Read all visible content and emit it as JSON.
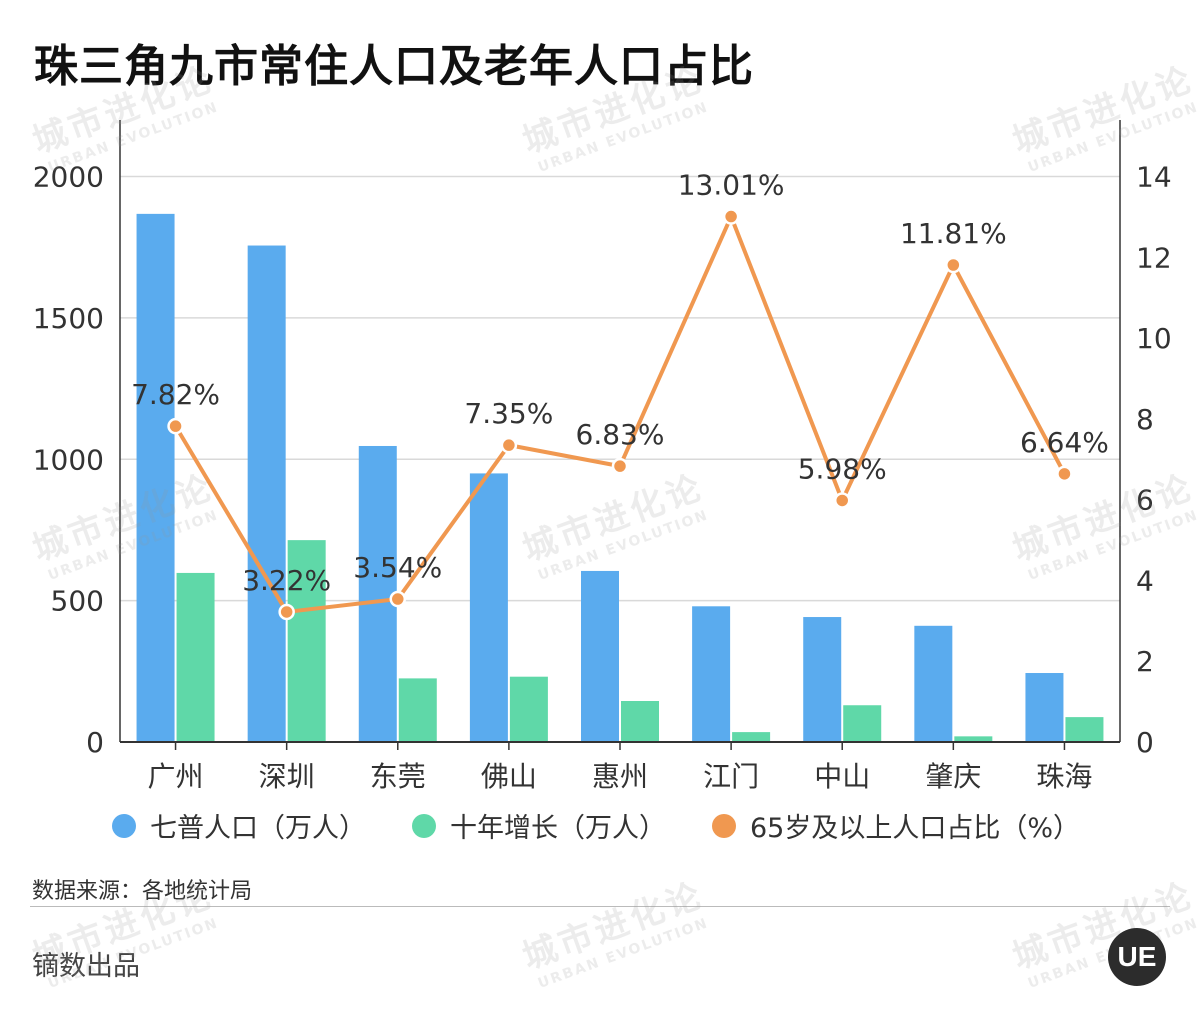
{
  "title": "珠三角九市常住人口及老年人口占比",
  "source": "数据来源：各地统计局",
  "credit": "镝数出品",
  "watermark": {
    "cn": "城市进化论",
    "en": "URBAN EVOLUTION",
    "logo": "UE"
  },
  "colors": {
    "population": "#5aabee",
    "growth": "#5fd8a8",
    "elderly": "#f09850"
  },
  "chart_data": {
    "type": "bar",
    "title": "珠三角九市常住人口及老年人口占比",
    "categories": [
      "广州",
      "深圳",
      "东莞",
      "佛山",
      "惠州",
      "江门",
      "中山",
      "肇庆",
      "珠海"
    ],
    "series": [
      {
        "name": "七普人口（万人）",
        "type": "bar",
        "axis": "left",
        "values": [
          1868,
          1756,
          1047,
          950,
          605,
          480,
          442,
          411,
          244
        ]
      },
      {
        "name": "十年增长（万人）",
        "type": "bar",
        "axis": "left",
        "values": [
          598,
          714,
          225,
          231,
          145,
          35,
          130,
          20,
          88
        ]
      },
      {
        "name": "65岁及以上人口占比（%）",
        "type": "line",
        "axis": "right",
        "values": [
          7.82,
          3.22,
          3.54,
          7.35,
          6.83,
          13.01,
          5.98,
          11.81,
          6.64
        ],
        "labels": [
          "7.82%",
          "3.22%",
          "3.54%",
          "7.35%",
          "6.83%",
          "13.01%",
          "5.98%",
          "11.81%",
          "6.64%"
        ]
      }
    ],
    "y_left": {
      "ylim": [
        0,
        2200
      ],
      "ticks": [
        0,
        500,
        1000,
        1500,
        2000
      ]
    },
    "y_right": {
      "ylim": [
        0,
        15.4
      ],
      "ticks": [
        0,
        2,
        4,
        6,
        8,
        10,
        12,
        14
      ]
    },
    "grid": true,
    "legend_position": "bottom"
  }
}
